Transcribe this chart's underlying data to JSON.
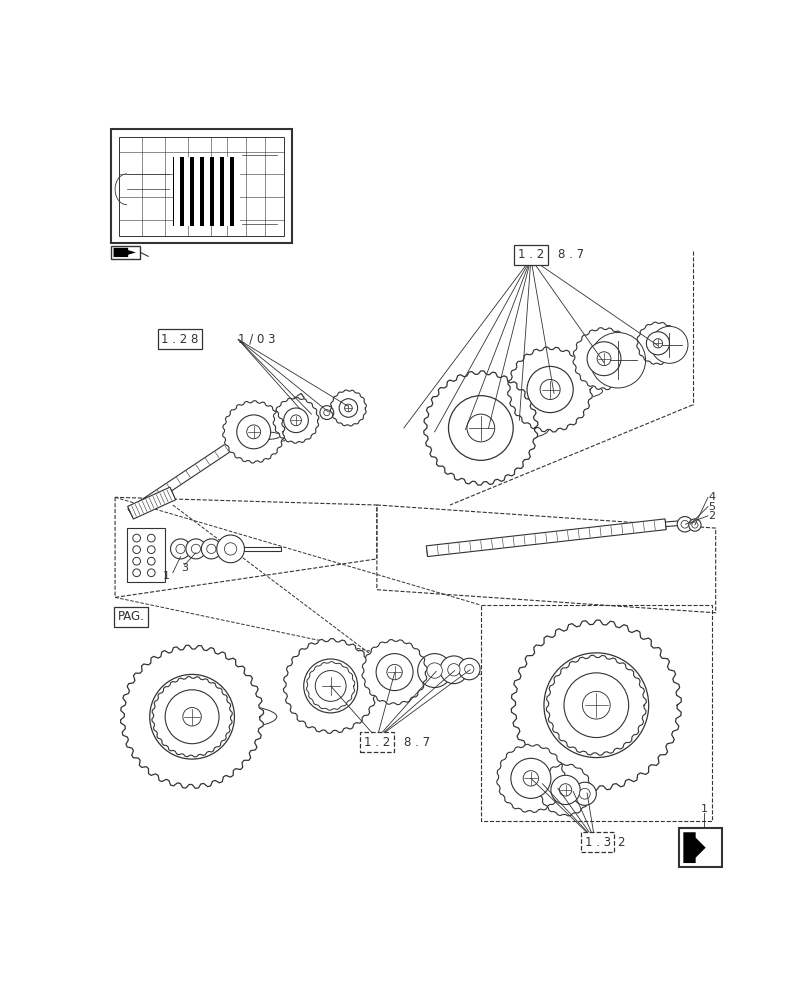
{
  "bg_color": "#ffffff",
  "line_color": "#333333",
  "figsize": [
    8.12,
    10.0
  ],
  "dpi": 100,
  "label_128_103": "1 . 2 8",
  "label_103": "1 / 0 3",
  "label_128_7_top": "1 . 2",
  "label_128_7_top2": "8 . 7",
  "label_128_7_bot": "1 . 2 8 . 7",
  "label_132": "1 . 3",
  "label_pag": "PAG."
}
